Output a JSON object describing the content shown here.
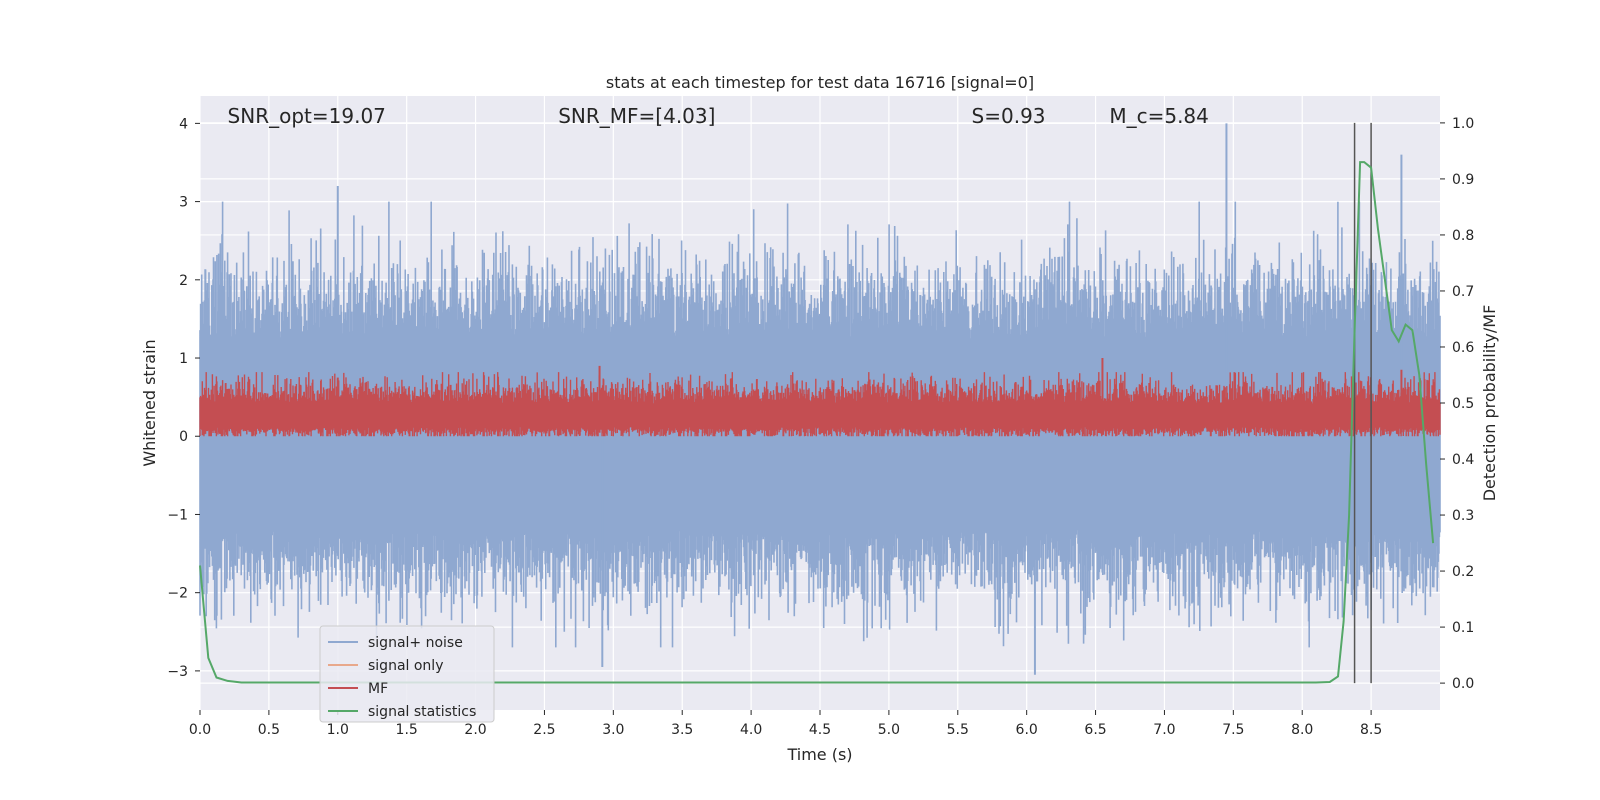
{
  "chart_data": {
    "type": "line",
    "title": "stats at each timestep for test data 16716 [signal=0]",
    "xlabel": "Time (s)",
    "ylabel": "Whitened strain",
    "ylabel_right": "Detection probability/MF",
    "xlim": [
      0.0,
      9.0
    ],
    "ylim": [
      -3.5,
      4.35
    ],
    "ylim_right": [
      -0.048,
      1.048
    ],
    "x_ticks": [
      0.0,
      0.5,
      1.0,
      1.5,
      2.0,
      2.5,
      3.0,
      3.5,
      4.0,
      4.5,
      5.0,
      5.5,
      6.0,
      6.5,
      7.0,
      7.5,
      8.0,
      8.5
    ],
    "x_tick_labels": [
      "0.0",
      "0.5",
      "1.0",
      "1.5",
      "2.0",
      "2.5",
      "3.0",
      "3.5",
      "4.0",
      "4.5",
      "5.0",
      "5.5",
      "6.0",
      "6.5",
      "7.0",
      "7.5",
      "8.0",
      "8.5"
    ],
    "y_ticks": [
      -3,
      -2,
      -1,
      0,
      1,
      2,
      3,
      4
    ],
    "y_tick_labels": [
      "−3",
      "−2",
      "−1",
      "0",
      "1",
      "2",
      "3",
      "4"
    ],
    "y_right_ticks": [
      0.0,
      0.1,
      0.2,
      0.3,
      0.4,
      0.5,
      0.6,
      0.7,
      0.8,
      0.9,
      1.0
    ],
    "y_right_tick_labels": [
      "0.0",
      "0.1",
      "0.2",
      "0.3",
      "0.4",
      "0.5",
      "0.6",
      "0.7",
      "0.8",
      "0.9",
      "1.0"
    ],
    "grid": true,
    "legend_position": "lower-left",
    "annotations": [
      {
        "text": "SNR_opt=19.07",
        "x": 0.2
      },
      {
        "text": "SNR_MF=[4.03]",
        "x": 2.6
      },
      {
        "text": "S=0.93",
        "x": 5.6
      },
      {
        "text": "M_c=5.84",
        "x": 6.6
      }
    ],
    "vlines": [
      8.38,
      8.5
    ],
    "series": [
      {
        "name": "signal+ noise",
        "color": "#8fa8d0",
        "axis": "left",
        "description_points": {
          "x": [
            1.0,
            2.92,
            6.06,
            7.45,
            8.72
          ],
          "y": [
            3.2,
            -2.95,
            -3.05,
            4.0,
            3.6
          ]
        }
      },
      {
        "name": "signal only",
        "color": "#e8a88b",
        "axis": "left",
        "x": [],
        "y": []
      },
      {
        "name": "MF",
        "color": "#c44e52",
        "axis": "left",
        "description_points": {
          "x": [
            1.0,
            2.9,
            6.55,
            8.72
          ],
          "y": [
            0.75,
            0.9,
            1.0,
            0.85
          ]
        }
      },
      {
        "name": "signal statistics",
        "color": "#55a868",
        "axis": "right",
        "x": [
          0.0,
          0.06,
          0.12,
          0.2,
          0.3,
          0.5,
          1.0,
          2.0,
          3.0,
          4.0,
          5.0,
          6.0,
          7.0,
          7.8,
          8.1,
          8.2,
          8.26,
          8.3,
          8.34,
          8.38,
          8.42,
          8.45,
          8.5,
          8.55,
          8.6,
          8.65,
          8.7,
          8.75,
          8.8,
          8.85,
          8.9,
          8.95
        ],
        "y": [
          0.21,
          0.045,
          0.01,
          0.004,
          0.001,
          0.001,
          0.001,
          0.001,
          0.001,
          0.001,
          0.001,
          0.001,
          0.001,
          0.001,
          0.001,
          0.002,
          0.012,
          0.11,
          0.3,
          0.63,
          0.93,
          0.93,
          0.92,
          0.81,
          0.72,
          0.63,
          0.61,
          0.64,
          0.63,
          0.55,
          0.39,
          0.25
        ]
      }
    ]
  }
}
